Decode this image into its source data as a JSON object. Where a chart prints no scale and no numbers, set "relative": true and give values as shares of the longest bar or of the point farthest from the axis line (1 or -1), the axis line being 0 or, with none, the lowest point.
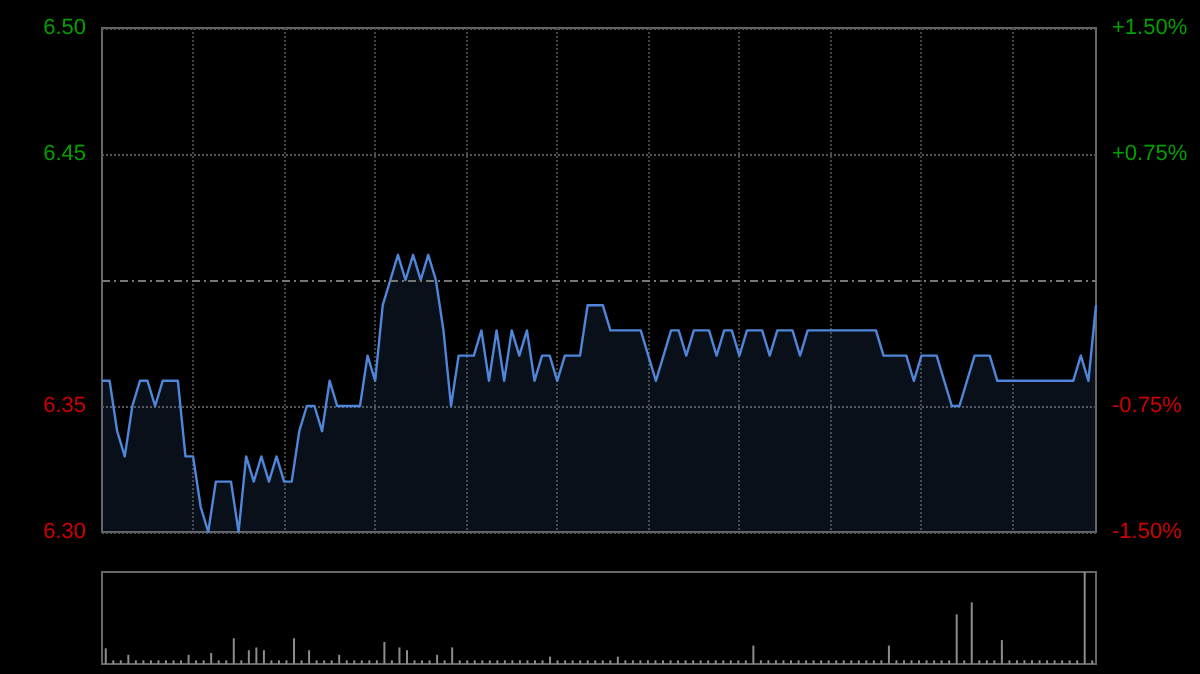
{
  "chart_data": [
    {
      "type": "area",
      "categories": [
        null,
        null,
        null,
        null,
        null,
        null,
        null,
        null,
        null,
        null,
        null,
        null,
        null,
        null,
        null,
        null,
        null,
        null,
        null,
        null,
        null,
        null,
        null,
        null,
        null,
        null,
        null,
        null,
        null,
        null,
        null,
        null,
        null,
        null,
        null,
        null,
        null,
        null,
        null,
        null,
        null,
        null,
        null,
        null,
        null,
        null,
        null,
        null,
        null,
        null,
        null,
        null,
        null,
        null,
        null,
        null,
        null,
        null,
        null,
        null,
        null,
        null,
        null,
        null,
        null,
        null,
        null,
        null,
        null,
        null,
        null,
        null,
        null,
        null,
        null,
        null,
        null,
        null,
        null,
        null,
        null,
        null,
        null,
        null,
        null,
        null,
        null,
        null,
        null,
        null,
        null,
        null,
        null,
        null,
        null,
        null,
        null,
        null,
        null,
        null,
        null,
        null,
        null,
        null,
        null,
        null,
        null,
        null,
        null,
        null,
        null,
        null,
        null,
        null,
        null,
        null,
        null,
        null,
        null,
        null,
        null,
        null,
        null,
        null,
        null,
        null,
        null,
        null,
        null,
        null,
        null,
        null
      ],
      "series": [
        {
          "color": "#4f86d9",
          "values": [
            6.36,
            6.36,
            6.34,
            6.33,
            6.35,
            6.36,
            6.36,
            6.35,
            6.36,
            6.36,
            6.36,
            6.33,
            6.33,
            6.31,
            6.3,
            6.32,
            6.32,
            6.32,
            6.3,
            6.33,
            6.32,
            6.33,
            6.32,
            6.33,
            6.32,
            6.32,
            6.34,
            6.35,
            6.35,
            6.34,
            6.36,
            6.35,
            6.35,
            6.35,
            6.35,
            6.37,
            6.36,
            6.39,
            6.4,
            6.41,
            6.4,
            6.41,
            6.4,
            6.41,
            6.4,
            6.38,
            6.35,
            6.37,
            6.37,
            6.37,
            6.38,
            6.36,
            6.38,
            6.36,
            6.38,
            6.37,
            6.38,
            6.36,
            6.37,
            6.37,
            6.36,
            6.37,
            6.37,
            6.37,
            6.39,
            6.39,
            6.39,
            6.38,
            6.38,
            6.38,
            6.38,
            6.38,
            6.37,
            6.36,
            6.37,
            6.38,
            6.38,
            6.37,
            6.38,
            6.38,
            6.38,
            6.37,
            6.38,
            6.38,
            6.37,
            6.38,
            6.38,
            6.38,
            6.37,
            6.38,
            6.38,
            6.38,
            6.37,
            6.38,
            6.38,
            6.38,
            6.38,
            6.38,
            6.38,
            6.38,
            6.38,
            6.38,
            6.38,
            6.37,
            6.37,
            6.37,
            6.37,
            6.36,
            6.37,
            6.37,
            6.37,
            6.36,
            6.35,
            6.35,
            6.36,
            6.37,
            6.37,
            6.37,
            6.36,
            6.36,
            6.36,
            6.36,
            6.36,
            6.36,
            6.36,
            6.36,
            6.36,
            6.36,
            6.36,
            6.37,
            6.36,
            6.39
          ]
        }
      ],
      "ylim": [
        6.3,
        6.5
      ],
      "yticks": [
        {
          "value": 6.3,
          "label": "6.30"
        },
        {
          "value": 6.35,
          "label": "6.35"
        },
        {
          "value": 6.45,
          "label": "6.45"
        },
        {
          "value": 6.5,
          "label": "6.50"
        }
      ],
      "y2lim": [
        -1.5,
        1.5
      ],
      "y2ticks": [
        {
          "value": -1.5,
          "label": "-1.50%"
        },
        {
          "value": -0.75,
          "label": "-0.75%"
        },
        {
          "value": 0.75,
          "label": "+0.75%"
        },
        {
          "value": 1.5,
          "label": "+1.50%"
        }
      ],
      "ref_lines": [
        {
          "axis": "y",
          "value": 6.4,
          "color": "#777777",
          "line_style": "dashed"
        }
      ],
      "grid": true
    },
    {
      "type": "bar",
      "relative": true,
      "categories": [
        null,
        null,
        null,
        null,
        null,
        null,
        null,
        null,
        null,
        null,
        null,
        null,
        null,
        null,
        null,
        null,
        null,
        null,
        null,
        null,
        null,
        null,
        null,
        null,
        null,
        null,
        null,
        null,
        null,
        null,
        null,
        null,
        null,
        null,
        null,
        null,
        null,
        null,
        null,
        null,
        null,
        null,
        null,
        null,
        null,
        null,
        null,
        null,
        null,
        null,
        null,
        null,
        null,
        null,
        null,
        null,
        null,
        null,
        null,
        null,
        null,
        null,
        null,
        null,
        null,
        null,
        null,
        null,
        null,
        null,
        null,
        null,
        null,
        null,
        null,
        null,
        null,
        null,
        null,
        null,
        null,
        null,
        null,
        null,
        null,
        null,
        null,
        null,
        null,
        null,
        null,
        null,
        null,
        null,
        null,
        null,
        null,
        null,
        null,
        null,
        null,
        null,
        null,
        null,
        null,
        null,
        null,
        null,
        null,
        null,
        null,
        null,
        null,
        null,
        null,
        null,
        null,
        null,
        null,
        null,
        null,
        null,
        null,
        null,
        null,
        null,
        null,
        null,
        null,
        null,
        null,
        null
      ],
      "color": "#8c8c8c",
      "values": [
        0.17,
        0.04,
        0.04,
        0.1,
        0.04,
        0.04,
        0.04,
        0.04,
        0.04,
        0.04,
        0.04,
        0.1,
        0.04,
        0.04,
        0.12,
        0.04,
        0.04,
        0.28,
        0.04,
        0.15,
        0.18,
        0.15,
        0.04,
        0.04,
        0.04,
        0.28,
        0.04,
        0.15,
        0.04,
        0.04,
        0.04,
        0.1,
        0.04,
        0.04,
        0.04,
        0.04,
        0.04,
        0.24,
        0.04,
        0.18,
        0.15,
        0.04,
        0.04,
        0.04,
        0.1,
        0.04,
        0.18,
        0.04,
        0.04,
        0.04,
        0.04,
        0.04,
        0.04,
        0.04,
        0.04,
        0.04,
        0.04,
        0.04,
        0.04,
        0.08,
        0.04,
        0.04,
        0.04,
        0.04,
        0.04,
        0.04,
        0.04,
        0.04,
        0.08,
        0.04,
        0.04,
        0.04,
        0.04,
        0.04,
        0.04,
        0.04,
        0.04,
        0.04,
        0.04,
        0.04,
        0.04,
        0.04,
        0.04,
        0.04,
        0.04,
        0.04,
        0.2,
        0.04,
        0.04,
        0.04,
        0.04,
        0.04,
        0.04,
        0.04,
        0.04,
        0.04,
        0.04,
        0.04,
        0.04,
        0.04,
        0.04,
        0.04,
        0.04,
        0.04,
        0.2,
        0.04,
        0.04,
        0.04,
        0.04,
        0.04,
        0.04,
        0.04,
        0.04,
        0.54,
        0.04,
        0.67,
        0.04,
        0.04,
        0.04,
        0.26,
        0.04,
        0.04,
        0.04,
        0.04,
        0.04,
        0.04,
        0.04,
        0.04,
        0.04,
        0.04,
        1,
        0.04
      ]
    }
  ]
}
